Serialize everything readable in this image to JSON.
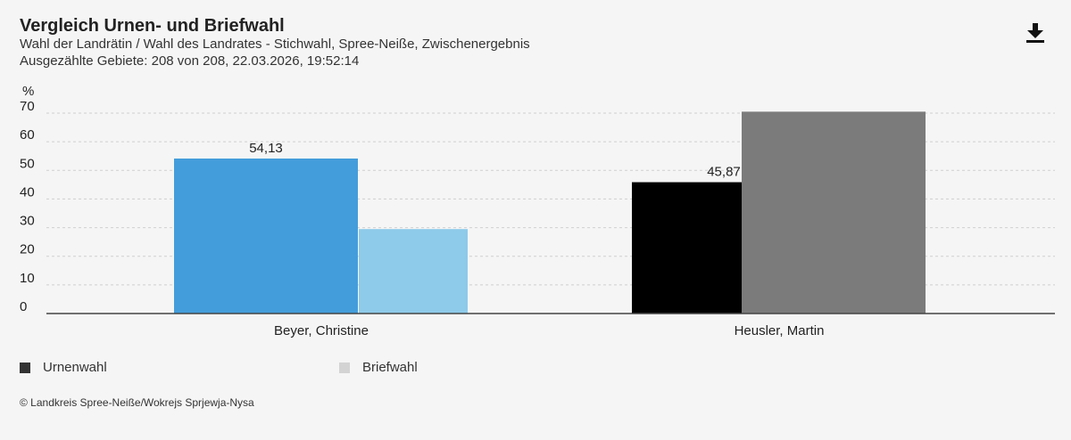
{
  "header": {
    "title": "Vergleich Urnen- und Briefwahl",
    "subtitle": "Wahl der Landrätin / Wahl des Landrates - Stichwahl, Spree-Neiße, Zwischenergebnis",
    "status": "Ausgezählte Gebiete: 208 von 208, 22.03.2026, 19:52:14",
    "download_icon": "download-icon"
  },
  "chart_data": {
    "type": "bar",
    "ylabel": "%",
    "ylim": [
      0,
      70
    ],
    "yticks": [
      "0",
      "10",
      "20",
      "30",
      "40",
      "50",
      "60",
      "70"
    ],
    "grid": true,
    "categories": [
      "Beyer, Christine",
      "Heusler, Martin"
    ],
    "series": [
      {
        "name": "Urnenwahl",
        "values": [
          54.13,
          45.87
        ],
        "colors": [
          "#449ddb",
          "#000000"
        ]
      },
      {
        "name": "Briefwahl",
        "values": [
          29.5,
          70.5
        ],
        "colors": [
          "#8ecae9",
          "#7b7b7b"
        ]
      }
    ],
    "data_labels": [
      "54,13",
      "45,87"
    ]
  },
  "legend": {
    "items": [
      {
        "label": "Urnenwahl",
        "color": "#333333"
      },
      {
        "label": "Briefwahl",
        "color": "#d3d3d3"
      }
    ]
  },
  "footer": {
    "copyright": "© Landkreis Spree-Neiße/Wokrejs Sprjewja-Nysa"
  }
}
